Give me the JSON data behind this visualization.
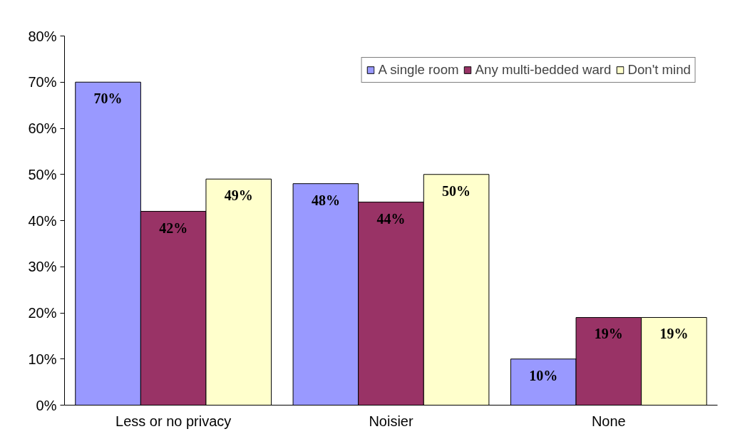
{
  "chart_data": {
    "type": "bar",
    "categories": [
      "Less or no privacy",
      "Noisier",
      "None"
    ],
    "series": [
      {
        "name": "A single room",
        "color": "#9999ff",
        "values": [
          70,
          48,
          10
        ],
        "value_labels": [
          "70%",
          "48%",
          "10%"
        ]
      },
      {
        "name": "Any multi-bedded ward",
        "color": "#993366",
        "values": [
          42,
          44,
          19
        ],
        "value_labels": [
          "42%",
          "44%",
          "19%"
        ]
      },
      {
        "name": "Don't mind",
        "color": "#ffffcc",
        "values": [
          49,
          50,
          19
        ],
        "value_labels": [
          "49%",
          "50%",
          "19%"
        ]
      }
    ],
    "ylim": [
      0,
      80
    ],
    "yticks": [
      {
        "value": 0,
        "label": "0%"
      },
      {
        "value": 10,
        "label": "10%"
      },
      {
        "value": 20,
        "label": "20%"
      },
      {
        "value": 30,
        "label": "30%"
      },
      {
        "value": 40,
        "label": "40%"
      },
      {
        "value": 50,
        "label": "50%"
      },
      {
        "value": 60,
        "label": "60%"
      },
      {
        "value": 70,
        "label": "70%"
      },
      {
        "value": 80,
        "label": "80%"
      }
    ],
    "grid": false,
    "legend": "top right"
  }
}
